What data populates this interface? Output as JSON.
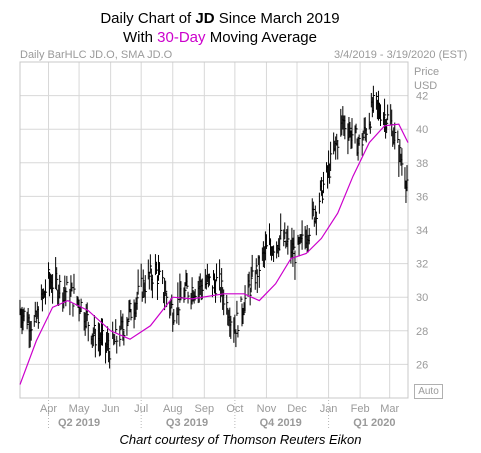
{
  "title": {
    "line1_prefix": "Daily Chart of ",
    "ticker": "JD",
    "line1_suffix": " Since March 2019",
    "line2_prefix": "With ",
    "line2_accent": "30-Day",
    "line2_suffix": " Moving Average"
  },
  "header": {
    "series_label": "Daily BarHLC JD.O, SMA JD.O",
    "date_range": "3/4/2019 - 3/19/2020 (EST)"
  },
  "axis": {
    "price_label": "Price",
    "currency_label": "USD",
    "auto_label": "Auto"
  },
  "credit": "Chart courtesy of Thomson Reuters Eikon",
  "colors": {
    "bars": "#000000",
    "moving_average": "#cc00cc",
    "grid": "#d8d8d8",
    "axis_text": "#9a9a9a"
  },
  "chart_data": {
    "type": "line",
    "series": [
      {
        "name": "Daily BarHLC JD.O",
        "kind": "hlc-bars",
        "points": [
          {
            "x": "2019-03-04",
            "close": 29.2
          },
          {
            "x": "2019-03-18",
            "close": 28.3
          },
          {
            "x": "2019-04-01",
            "close": 31.0
          },
          {
            "x": "2019-04-15",
            "close": 30.5
          },
          {
            "x": "2019-05-01",
            "close": 29.8
          },
          {
            "x": "2019-05-15",
            "close": 27.8
          },
          {
            "x": "2019-06-01",
            "close": 26.9
          },
          {
            "x": "2019-06-15",
            "close": 28.4
          },
          {
            "x": "2019-07-01",
            "close": 30.5
          },
          {
            "x": "2019-07-15",
            "close": 31.6
          },
          {
            "x": "2019-08-01",
            "close": 29.2
          },
          {
            "x": "2019-08-15",
            "close": 30.4
          },
          {
            "x": "2019-09-01",
            "close": 30.8
          },
          {
            "x": "2019-09-15",
            "close": 30.9
          },
          {
            "x": "2019-10-01",
            "close": 28.2
          },
          {
            "x": "2019-10-15",
            "close": 30.5
          },
          {
            "x": "2019-11-01",
            "close": 32.8
          },
          {
            "x": "2019-11-15",
            "close": 33.5
          },
          {
            "x": "2019-12-01",
            "close": 32.5
          },
          {
            "x": "2019-12-15",
            "close": 34.5
          },
          {
            "x": "2020-01-01",
            "close": 37.5
          },
          {
            "x": "2020-01-15",
            "close": 40.5
          },
          {
            "x": "2020-02-01",
            "close": 39.0
          },
          {
            "x": "2020-02-15",
            "close": 41.5
          },
          {
            "x": "2020-03-01",
            "close": 40.5
          },
          {
            "x": "2020-03-19",
            "close": 36.8
          }
        ]
      },
      {
        "name": "SMA JD.O",
        "kind": "line",
        "points": [
          {
            "x": "2019-03-04",
            "y": 24.8
          },
          {
            "x": "2019-03-20",
            "y": 27.4
          },
          {
            "x": "2019-04-05",
            "y": 29.4
          },
          {
            "x": "2019-04-20",
            "y": 29.8
          },
          {
            "x": "2019-05-10",
            "y": 29.2
          },
          {
            "x": "2019-06-01",
            "y": 28.0
          },
          {
            "x": "2019-06-20",
            "y": 27.5
          },
          {
            "x": "2019-07-10",
            "y": 28.3
          },
          {
            "x": "2019-08-01",
            "y": 30.0
          },
          {
            "x": "2019-08-20",
            "y": 29.9
          },
          {
            "x": "2019-09-20",
            "y": 30.2
          },
          {
            "x": "2019-10-10",
            "y": 30.2
          },
          {
            "x": "2019-10-25",
            "y": 29.8
          },
          {
            "x": "2019-11-10",
            "y": 30.8
          },
          {
            "x": "2019-11-25",
            "y": 32.3
          },
          {
            "x": "2019-12-10",
            "y": 32.6
          },
          {
            "x": "2019-12-25",
            "y": 33.5
          },
          {
            "x": "2020-01-10",
            "y": 35.0
          },
          {
            "x": "2020-01-25",
            "y": 37.2
          },
          {
            "x": "2020-02-10",
            "y": 39.2
          },
          {
            "x": "2020-02-25",
            "y": 40.2
          },
          {
            "x": "2020-03-10",
            "y": 40.3
          },
          {
            "x": "2020-03-19",
            "y": 39.2
          }
        ]
      }
    ],
    "x_range": [
      "2019-03-04",
      "2020-03-19"
    ],
    "x_ticks": [
      "Apr",
      "May",
      "Jun",
      "Jul",
      "Aug",
      "Sep",
      "Oct",
      "Nov",
      "Dec",
      "Jan",
      "Feb",
      "Mar"
    ],
    "x_tick_dates": [
      "2019-04-01",
      "2019-05-01",
      "2019-06-01",
      "2019-07-01",
      "2019-08-01",
      "2019-09-01",
      "2019-10-01",
      "2019-11-01",
      "2019-12-01",
      "2020-01-01",
      "2020-02-01",
      "2020-03-01"
    ],
    "quarters": [
      "Q2 2019",
      "Q3 2019",
      "Q4 2019",
      "Q1 2020"
    ],
    "quarter_dates": [
      "2019-05-01",
      "2019-08-15",
      "2019-11-15",
      "2020-02-15"
    ],
    "y_ticks": [
      26,
      28,
      30,
      32,
      34,
      36,
      38,
      40,
      42
    ],
    "ylim": [
      24,
      44
    ],
    "grid": true,
    "legend": "none"
  }
}
